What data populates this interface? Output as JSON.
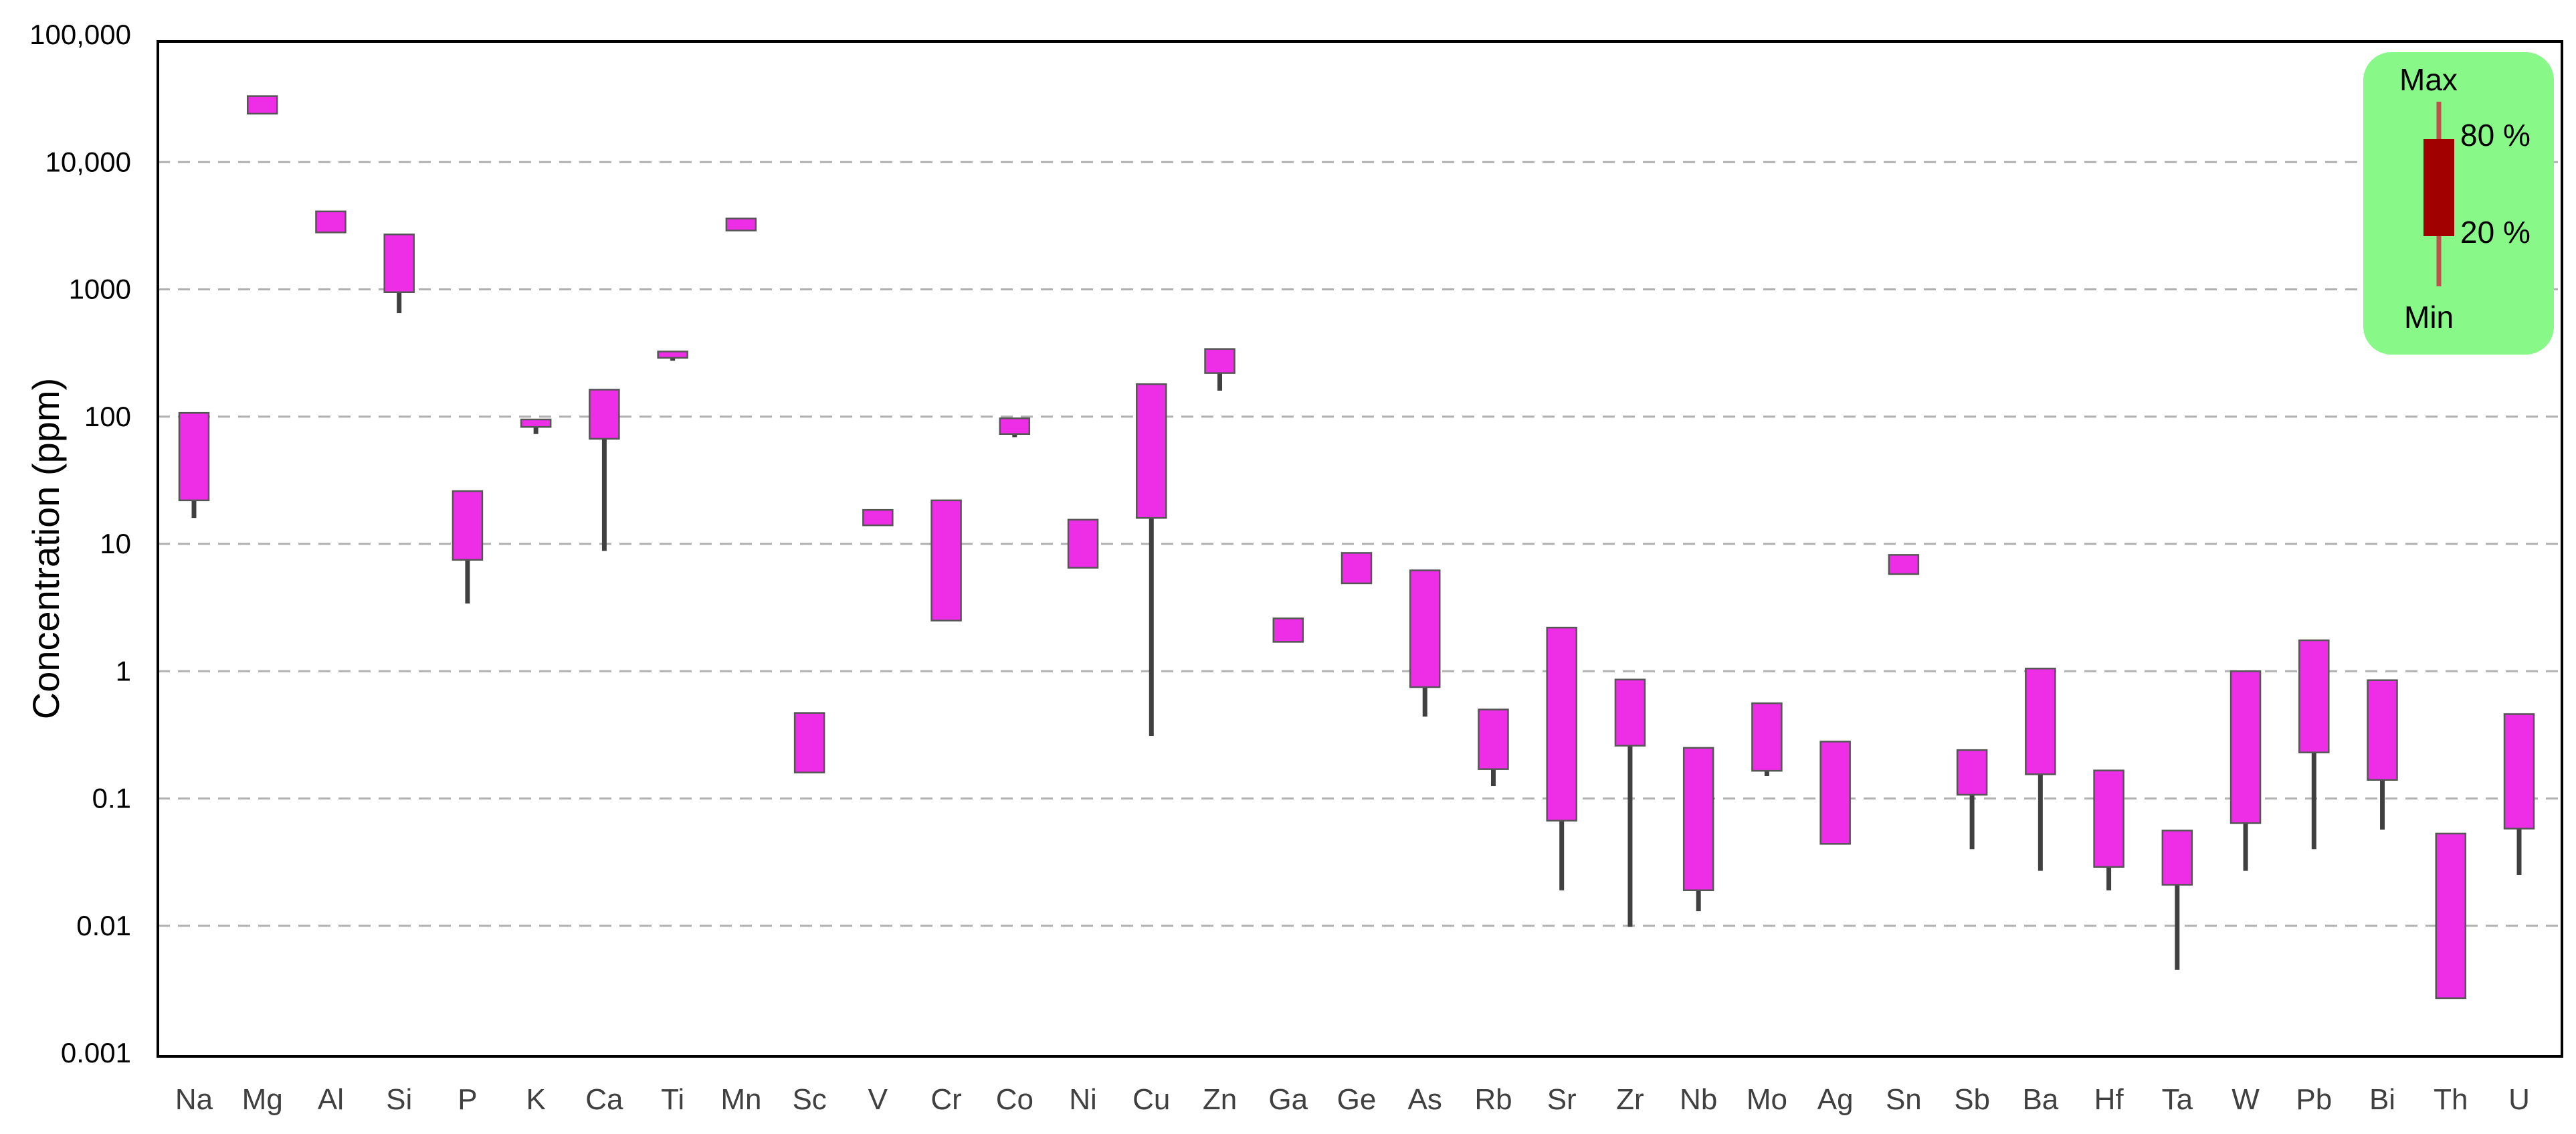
{
  "chart_data": {
    "type": "box-range",
    "ylabel": "Concentration (ppm)",
    "yscale": "log",
    "ylim": [
      0.001,
      100000
    ],
    "ytick_labels": [
      "100,000",
      "10,000",
      "1000",
      "100",
      "10",
      "1",
      "0.1",
      "0.01",
      "0.001"
    ],
    "ytick_values": [
      100000,
      10000,
      1000,
      100,
      10,
      1,
      0.1,
      0.01,
      0.001
    ],
    "grid": "horizontal-dashed",
    "bar_color": "#ee2ee6",
    "whisker_color": "#404040",
    "categories": [
      "Na",
      "Mg",
      "Al",
      "Si",
      "P",
      "K",
      "Ca",
      "Ti",
      "Mn",
      "Sc",
      "V",
      "Cr",
      "Co",
      "Ni",
      "Cu",
      "Zn",
      "Ga",
      "Ge",
      "As",
      "Rb",
      "Sr",
      "Zr",
      "Nb",
      "Mo",
      "Ag",
      "Sn",
      "Sb",
      "Ba",
      "Hf",
      "Ta",
      "W",
      "Pb",
      "Bi",
      "Th",
      "U"
    ],
    "series": [
      {
        "category": "Na",
        "min": 16,
        "p20": 22,
        "p80": 107,
        "max": 107
      },
      {
        "category": "Mg",
        "min": 24000,
        "p20": 24000,
        "p80": 33000,
        "max": 33000
      },
      {
        "category": "Al",
        "min": 2800,
        "p20": 2800,
        "p80": 4100,
        "max": 4100
      },
      {
        "category": "Si",
        "min": 650,
        "p20": 950,
        "p80": 2700,
        "max": 2700
      },
      {
        "category": "P",
        "min": 3.4,
        "p20": 7.5,
        "p80": 26,
        "max": 26
      },
      {
        "category": "K",
        "min": 73,
        "p20": 83,
        "p80": 95,
        "max": 95
      },
      {
        "category": "Ca",
        "min": 8.8,
        "p20": 67,
        "p80": 163,
        "max": 163
      },
      {
        "category": "Ti",
        "min": 275,
        "p20": 290,
        "p80": 325,
        "max": 325
      },
      {
        "category": "Mn",
        "min": 2900,
        "p20": 2900,
        "p80": 3600,
        "max": 3600
      },
      {
        "category": "Sc",
        "min": 0.16,
        "p20": 0.16,
        "p80": 0.47,
        "max": 0.47
      },
      {
        "category": "V",
        "min": 14,
        "p20": 14,
        "p80": 18.5,
        "max": 18.5
      },
      {
        "category": "Cr",
        "min": 2.5,
        "p20": 2.5,
        "p80": 22,
        "max": 22
      },
      {
        "category": "Co",
        "min": 69,
        "p20": 73,
        "p80": 97,
        "max": 97
      },
      {
        "category": "Ni",
        "min": 6.5,
        "p20": 6.5,
        "p80": 15.5,
        "max": 15.5
      },
      {
        "category": "Cu",
        "min": 0.31,
        "p20": 16,
        "p80": 180,
        "max": 180
      },
      {
        "category": "Zn",
        "min": 160,
        "p20": 220,
        "p80": 340,
        "max": 340
      },
      {
        "category": "Ga",
        "min": 1.7,
        "p20": 1.7,
        "p80": 2.6,
        "max": 2.6
      },
      {
        "category": "Ge",
        "min": 4.9,
        "p20": 4.9,
        "p80": 8.5,
        "max": 8.5
      },
      {
        "category": "As",
        "min": 0.44,
        "p20": 0.75,
        "p80": 6.2,
        "max": 6.2
      },
      {
        "category": "Rb",
        "min": 0.125,
        "p20": 0.17,
        "p80": 0.5,
        "max": 0.5
      },
      {
        "category": "Sr",
        "min": 0.019,
        "p20": 0.067,
        "p80": 2.2,
        "max": 2.2
      },
      {
        "category": "Zr",
        "min": 0.0098,
        "p20": 0.26,
        "p80": 0.86,
        "max": 0.86
      },
      {
        "category": "Nb",
        "min": 0.013,
        "p20": 0.019,
        "p80": 0.25,
        "max": 0.25
      },
      {
        "category": "Mo",
        "min": 0.15,
        "p20": 0.165,
        "p80": 0.56,
        "max": 0.56
      },
      {
        "category": "Ag",
        "min": 0.044,
        "p20": 0.044,
        "p80": 0.28,
        "max": 0.28
      },
      {
        "category": "Sn",
        "min": 5.8,
        "p20": 5.8,
        "p80": 8.2,
        "max": 8.2
      },
      {
        "category": "Sb",
        "min": 0.04,
        "p20": 0.107,
        "p80": 0.24,
        "max": 0.24
      },
      {
        "category": "Ba",
        "min": 0.027,
        "p20": 0.155,
        "p80": 1.05,
        "max": 1.05
      },
      {
        "category": "Hf",
        "min": 0.019,
        "p20": 0.029,
        "p80": 0.166,
        "max": 0.166
      },
      {
        "category": "Ta",
        "min": 0.0045,
        "p20": 0.021,
        "p80": 0.056,
        "max": 0.056
      },
      {
        "category": "W",
        "min": 0.027,
        "p20": 0.064,
        "p80": 1.0,
        "max": 1.0
      },
      {
        "category": "Pb",
        "min": 0.04,
        "p20": 0.23,
        "p80": 1.75,
        "max": 1.75
      },
      {
        "category": "Bi",
        "min": 0.057,
        "p20": 0.14,
        "p80": 0.85,
        "max": 0.85
      },
      {
        "category": "Th",
        "min": 0.0027,
        "p20": 0.0027,
        "p80": 0.053,
        "max": 0.053
      },
      {
        "category": "U",
        "min": 0.025,
        "p20": 0.058,
        "p80": 0.46,
        "max": 0.46
      }
    ]
  },
  "legend": {
    "background": "#88f888",
    "box_color": "#a00000",
    "whisker_color": "#c0504d",
    "max_label": "Max",
    "p80_label": "80 %",
    "p20_label": "20 %",
    "min_label": "Min"
  }
}
